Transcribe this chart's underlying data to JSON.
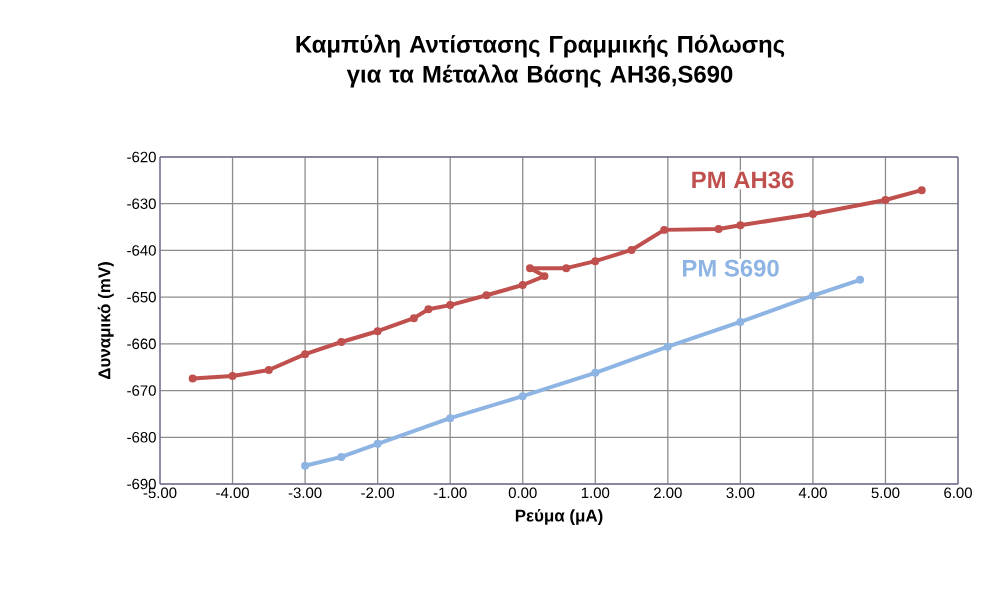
{
  "chart_data": {
    "type": "line",
    "title": "Καμπύλη Αντίστασης Γραμμικής Πόλωσης για τα Μέταλλα Βάσης AH36,S690",
    "xlabel": "Ρεύμα (μA)",
    "ylabel": "Δυναμικό (mV)",
    "series": [
      {
        "name": "PM AH36",
        "color": "#c0504d",
        "x": [
          -4.55,
          -4.0,
          -3.5,
          -3.0,
          -2.5,
          -2.0,
          -1.5,
          -1.3,
          -1.0,
          -0.5,
          0.0,
          0.3,
          0.1,
          0.6,
          1.0,
          1.5,
          1.95,
          2.7,
          3.0,
          4.0,
          5.0,
          5.5
        ],
        "values": [
          -667.4,
          -666.9,
          -665.6,
          -662.2,
          -659.6,
          -657.3,
          -654.5,
          -652.6,
          -651.7,
          -649.6,
          -647.4,
          -645.5,
          -643.8,
          -643.8,
          -642.3,
          -639.9,
          -635.6,
          -635.4,
          -634.6,
          -632.2,
          -629.2,
          -627.1
        ]
      },
      {
        "name": "PM S690",
        "color": "#8db4e2",
        "x": [
          -3.0,
          -2.5,
          -2.0,
          -1.0,
          0.0,
          1.0,
          2.0,
          3.0,
          4.0,
          4.65
        ],
        "values": [
          -686.1,
          -684.2,
          -681.4,
          -675.9,
          -671.2,
          -666.2,
          -660.6,
          -655.3,
          -649.7,
          -646.3
        ]
      }
    ],
    "xlim": [
      -5,
      6
    ],
    "ylim": [
      -690,
      -620
    ],
    "xticks": [
      {
        "value": -5,
        "label": "-5.00"
      },
      {
        "value": -4,
        "label": "-4.00"
      },
      {
        "value": -3,
        "label": "-3.00"
      },
      {
        "value": -2,
        "label": "-2.00"
      },
      {
        "value": -1,
        "label": "-1.00"
      },
      {
        "value": 0,
        "label": "0.00"
      },
      {
        "value": 1,
        "label": "1.00"
      },
      {
        "value": 2,
        "label": "2.00"
      },
      {
        "value": 3,
        "label": "3.00"
      },
      {
        "value": 4,
        "label": "4.00"
      },
      {
        "value": 5,
        "label": "5.00"
      },
      {
        "value": 6,
        "label": "6.00"
      }
    ],
    "yticks": [
      -690,
      -680,
      -670,
      -660,
      -650,
      -640,
      -630,
      -620
    ],
    "grid": true,
    "legend": false,
    "marker": "circle",
    "line_style": "solid"
  }
}
